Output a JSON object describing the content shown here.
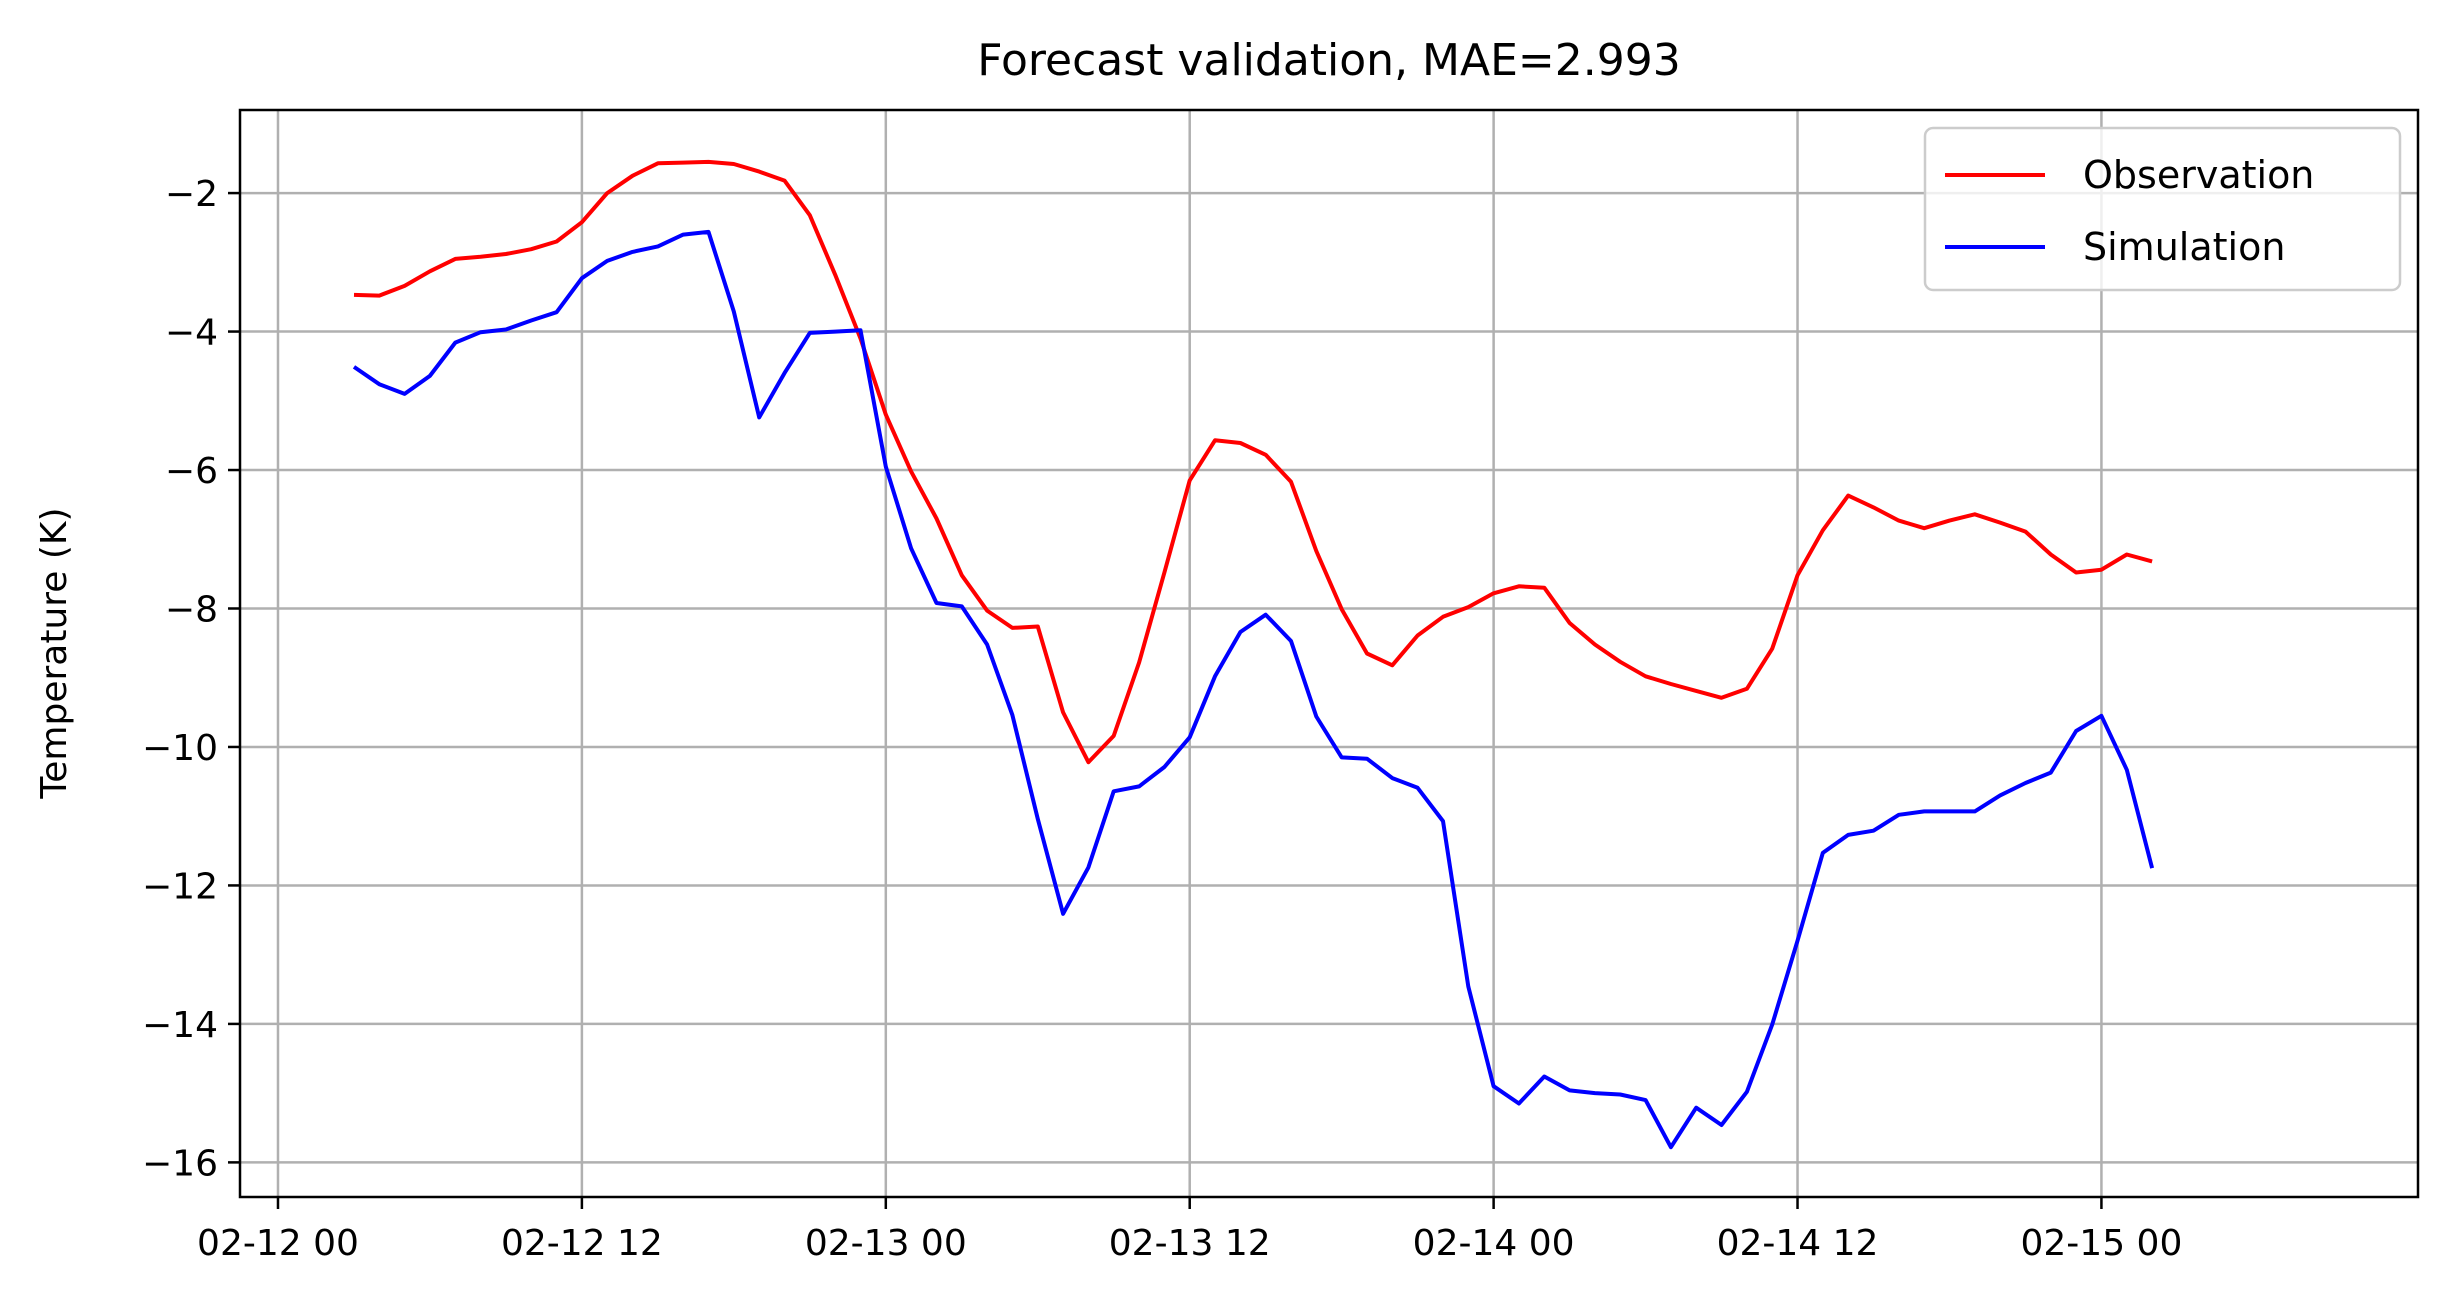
{
  "chart_data": {
    "type": "line",
    "title": "Forecast validation, MAE=2.993",
    "xlabel": "",
    "ylabel": "Temperature (K)",
    "x_unit": "hours from 02-12 00",
    "xlim": [
      -1.5,
      84.5
    ],
    "ylim": [
      -16.5,
      -0.8
    ],
    "grid": true,
    "legend_position": "top-right",
    "x_ticks": [
      {
        "value": 0,
        "label": "02-12 00"
      },
      {
        "value": 12,
        "label": "02-12 12"
      },
      {
        "value": 24,
        "label": "02-13 00"
      },
      {
        "value": 36,
        "label": "02-13 12"
      },
      {
        "value": 48,
        "label": "02-14 00"
      },
      {
        "value": 60,
        "label": "02-14 12"
      },
      {
        "value": 72,
        "label": "02-15 00"
      }
    ],
    "y_ticks": [
      {
        "value": -2,
        "label": "−2"
      },
      {
        "value": -4,
        "label": "−4"
      },
      {
        "value": -6,
        "label": "−6"
      },
      {
        "value": -8,
        "label": "−8"
      },
      {
        "value": -10,
        "label": "−10"
      },
      {
        "value": -12,
        "label": "−12"
      },
      {
        "value": -14,
        "label": "−14"
      },
      {
        "value": -16,
        "label": "−16"
      }
    ],
    "x": [
      3,
      4,
      5,
      6,
      7,
      8,
      9,
      10,
      11,
      12,
      13,
      14,
      15,
      16,
      17,
      18,
      19,
      20,
      21,
      22,
      23,
      24,
      25,
      26,
      27,
      28,
      29,
      30,
      31,
      32,
      33,
      34,
      35,
      36,
      37,
      38,
      39,
      40,
      41,
      42,
      43,
      44,
      45,
      46,
      47,
      48,
      49,
      50,
      51,
      52,
      53,
      54,
      55,
      56,
      57,
      58,
      59,
      60,
      61,
      62,
      63,
      64,
      65,
      66,
      67,
      68,
      69,
      70,
      71,
      72,
      73,
      74
    ],
    "series": [
      {
        "name": "Observation",
        "color": "#ff0000",
        "values": [
          -3.47,
          -3.48,
          -3.34,
          -3.13,
          -2.95,
          -2.92,
          -2.88,
          -2.81,
          -2.7,
          -2.42,
          -2.0,
          -1.75,
          -1.57,
          -1.56,
          -1.55,
          -1.58,
          -1.69,
          -1.82,
          -2.32,
          -3.18,
          -4.1,
          -5.2,
          -6.02,
          -6.7,
          -7.52,
          -8.03,
          -8.28,
          -8.26,
          -9.5,
          -10.22,
          -9.84,
          -8.78,
          -7.48,
          -6.15,
          -5.57,
          -5.61,
          -5.78,
          -6.17,
          -7.17,
          -8.01,
          -8.65,
          -8.82,
          -8.39,
          -8.12,
          -7.98,
          -7.78,
          -7.68,
          -7.7,
          -8.21,
          -8.52,
          -8.77,
          -8.98,
          -9.09,
          -9.19,
          -9.29,
          -9.16,
          -8.58,
          -7.52,
          -6.87,
          -6.37,
          -6.54,
          -6.73,
          -6.84,
          -6.73,
          -6.64,
          -6.76,
          -6.89,
          -7.22,
          -7.48,
          -7.44,
          -7.22,
          -7.32
        ]
      },
      {
        "name": "Simulation",
        "color": "#0000ff",
        "values": [
          -4.51,
          -4.76,
          -4.9,
          -4.64,
          -4.16,
          -4.01,
          -3.97,
          -3.84,
          -3.72,
          -3.23,
          -2.98,
          -2.85,
          -2.77,
          -2.6,
          -2.56,
          -3.71,
          -5.24,
          -4.6,
          -4.02,
          -4.0,
          -3.98,
          -5.95,
          -7.13,
          -7.92,
          -7.97,
          -8.52,
          -9.54,
          -11.04,
          -12.41,
          -11.74,
          -10.64,
          -10.57,
          -10.29,
          -9.86,
          -8.98,
          -8.34,
          -8.09,
          -8.47,
          -9.56,
          -10.15,
          -10.17,
          -10.45,
          -10.59,
          -11.07,
          -13.46,
          -14.9,
          -15.15,
          -14.76,
          -14.96,
          -15.0,
          -15.02,
          -15.1,
          -15.78,
          -15.21,
          -15.46,
          -14.98,
          -14.01,
          -12.8,
          -11.53,
          -11.27,
          -11.21,
          -10.98,
          -10.93,
          -10.93,
          -10.93,
          -10.7,
          -10.52,
          -10.37,
          -9.77,
          -9.55,
          -10.33,
          -11.75
        ]
      }
    ]
  }
}
